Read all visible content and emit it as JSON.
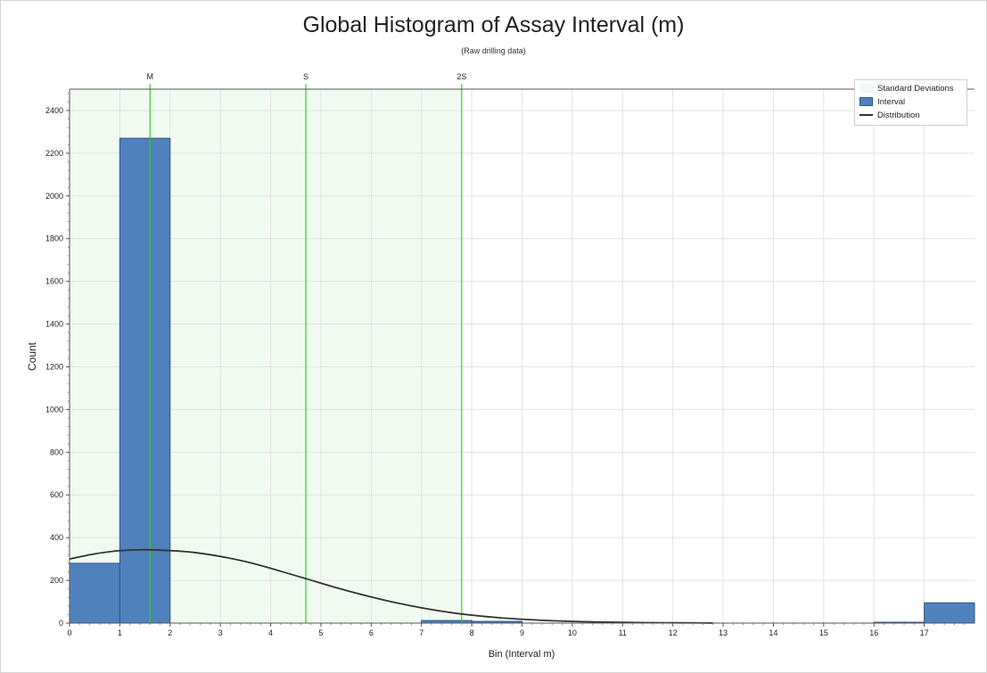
{
  "chart_data": {
    "type": "bar",
    "title": "Global Histogram of Assay Interval (m)",
    "subtitle": "(Raw drilling data)",
    "xlabel": "Bin (Interval m)",
    "ylabel": "Count",
    "xlim": [
      0,
      18
    ],
    "ylim": [
      0,
      2500
    ],
    "x_ticks": [
      0,
      1,
      2,
      3,
      4,
      5,
      6,
      7,
      8,
      9,
      10,
      11,
      12,
      13,
      14,
      15,
      16,
      17
    ],
    "y_ticks": [
      0,
      200,
      400,
      600,
      800,
      1000,
      1200,
      1400,
      1600,
      1800,
      2000,
      2200,
      2400
    ],
    "bins": [
      {
        "x0": 0,
        "x1": 1,
        "count": 280
      },
      {
        "x0": 1,
        "x1": 2,
        "count": 2270
      },
      {
        "x0": 7,
        "x1": 8,
        "count": 12
      },
      {
        "x0": 8,
        "x1": 9,
        "count": 8
      },
      {
        "x0": 16,
        "x1": 17,
        "count": 4
      },
      {
        "x0": 17,
        "x1": 18,
        "count": 95
      }
    ],
    "distribution": {
      "name": "Distribution",
      "points": [
        [
          0,
          300
        ],
        [
          0.5,
          324
        ],
        [
          1,
          339
        ],
        [
          1.6,
          343
        ],
        [
          2.5,
          330
        ],
        [
          3.5,
          288
        ],
        [
          4.5,
          222
        ],
        [
          5.5,
          153
        ],
        [
          6.5,
          95
        ],
        [
          7.5,
          52
        ],
        [
          8.5,
          26
        ],
        [
          9.5,
          12
        ],
        [
          10.5,
          5
        ],
        [
          11.5,
          2
        ],
        [
          12.5,
          1
        ],
        [
          12.8,
          0
        ]
      ]
    },
    "std_markers": [
      {
        "label": "M",
        "x": 1.6
      },
      {
        "label": "S",
        "x": 4.7
      },
      {
        "label": "2S",
        "x": 7.8
      }
    ],
    "std_band": [
      0,
      7.8
    ],
    "legend": [
      {
        "label": "Standard Deviations",
        "kind": "band"
      },
      {
        "label": "Interval",
        "kind": "bar"
      },
      {
        "label": "Distribution",
        "kind": "line"
      }
    ],
    "legend_position": "top-right",
    "grid": true,
    "colors": {
      "bar_fill": "#4f81bd",
      "bar_stroke": "#2f5587",
      "band_fill": "#f1faf1",
      "marker_line": "#33cc33",
      "curve": "#333333",
      "grid": "#e3e3e3"
    }
  }
}
